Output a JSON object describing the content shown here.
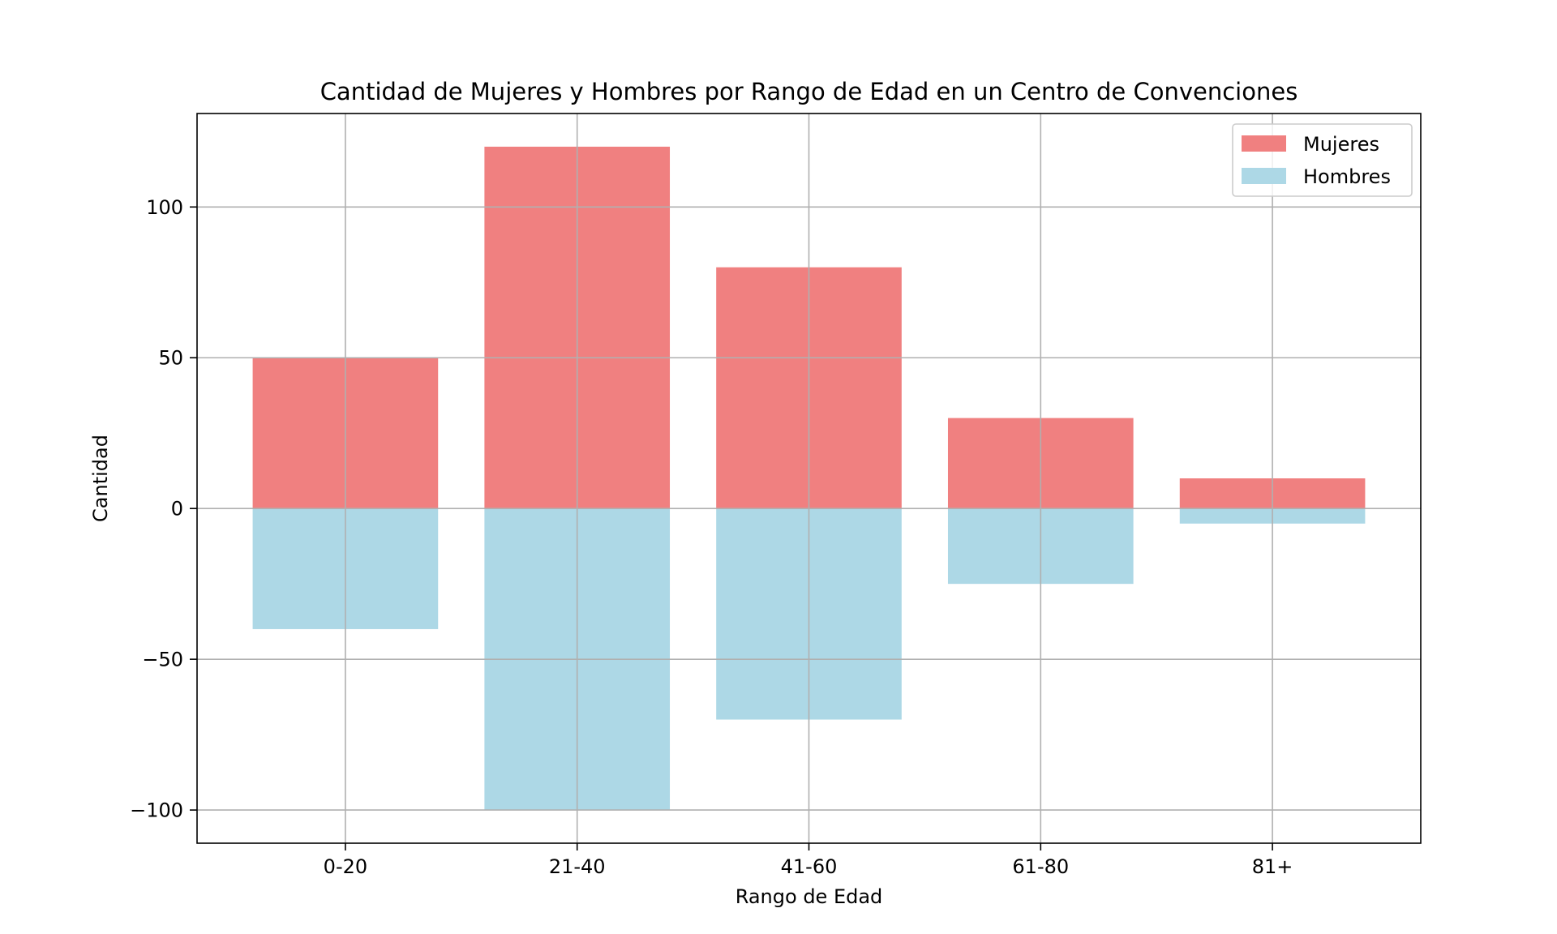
{
  "chart_data": {
    "type": "bar",
    "title": "Cantidad de Mujeres y Hombres por Rango de Edad en un Centro de Convenciones",
    "xlabel": "Rango de Edad",
    "ylabel": "Cantidad",
    "categories": [
      "0-20",
      "21-40",
      "41-60",
      "61-80",
      "81+"
    ],
    "series": [
      {
        "name": "Mujeres",
        "values": [
          50,
          120,
          80,
          30,
          10
        ],
        "color": "#f08080"
      },
      {
        "name": "Hombres",
        "values": [
          -40,
          -100,
          -70,
          -25,
          -5
        ],
        "color": "#add8e6"
      }
    ],
    "ylim": [
      -111,
      131
    ],
    "yticks": [
      -100,
      -50,
      0,
      50,
      100
    ],
    "ytick_labels": [
      "−100",
      "−50",
      "0",
      "50",
      "100"
    ],
    "grid": true,
    "legend_position": "upper right"
  }
}
